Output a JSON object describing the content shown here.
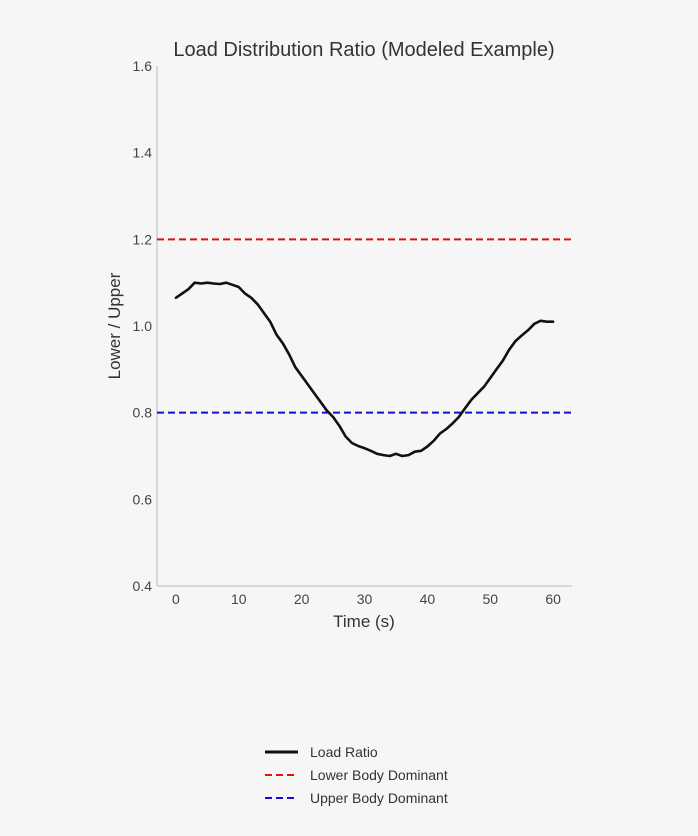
{
  "chart_data": {
    "type": "line",
    "title": "Load Distribution Ratio (Modeled Example)",
    "xlabel": "Time (s)",
    "ylabel": "Lower / Upper",
    "xlim": [
      -3,
      63
    ],
    "ylim": [
      0.4,
      1.6
    ],
    "xticks": [
      "0",
      "10",
      "20",
      "30",
      "40",
      "50",
      "60"
    ],
    "yticks": [
      "0.4",
      "0.6",
      "0.8",
      "1.0",
      "1.2",
      "1.4",
      "1.6"
    ],
    "grid": true,
    "legend_position": "bottom-center",
    "series": [
      {
        "name": "Load Ratio",
        "color": "#111111",
        "style": "solid",
        "x": [
          0,
          1,
          2,
          3,
          4,
          5,
          6,
          7,
          8,
          9,
          10,
          11,
          12,
          13,
          14,
          15,
          16,
          17,
          18,
          19,
          20,
          21,
          22,
          23,
          24,
          25,
          26,
          27,
          28,
          29,
          30,
          31,
          32,
          33,
          34,
          35,
          36,
          37,
          38,
          39,
          40,
          41,
          42,
          43,
          44,
          45,
          46,
          47,
          48,
          49,
          50,
          51,
          52,
          53,
          54,
          55,
          56,
          57,
          58,
          59,
          60
        ],
        "y": [
          1.065,
          1.075,
          1.085,
          1.1,
          1.098,
          1.1,
          1.098,
          1.097,
          1.1,
          1.095,
          1.09,
          1.075,
          1.065,
          1.05,
          1.03,
          1.01,
          0.98,
          0.96,
          0.935,
          0.905,
          0.885,
          0.865,
          0.845,
          0.825,
          0.805,
          0.79,
          0.77,
          0.745,
          0.73,
          0.723,
          0.718,
          0.712,
          0.705,
          0.702,
          0.7,
          0.705,
          0.7,
          0.702,
          0.71,
          0.712,
          0.722,
          0.735,
          0.752,
          0.762,
          0.775,
          0.79,
          0.81,
          0.83,
          0.845,
          0.86,
          0.88,
          0.9,
          0.92,
          0.945,
          0.965,
          0.978,
          0.99,
          1.005,
          1.012,
          1.01,
          1.01
        ]
      },
      {
        "name": "Lower Body Dominant",
        "color": "#dd1111",
        "style": "dashed",
        "y_constant": 1.2
      },
      {
        "name": "Upper Body Dominant",
        "color": "#1111cc",
        "style": "dashed",
        "y_constant": 0.8
      }
    ]
  }
}
